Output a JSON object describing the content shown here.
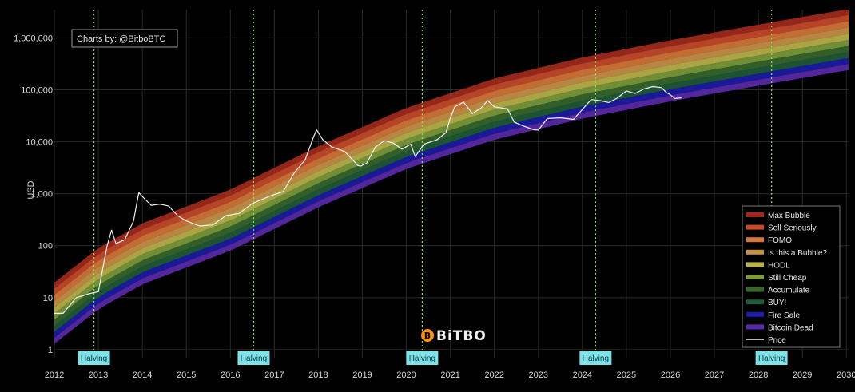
{
  "credit": "Charts by: @BitboBTC",
  "logo_text": "BiTBO",
  "chart_data": {
    "type": "line",
    "ylabel": "USD",
    "xlabel": "",
    "title": "",
    "y_scale": "log",
    "ylim": [
      0.7,
      3500000
    ],
    "xlim": [
      2012.0,
      2030.05
    ],
    "grid": true,
    "x_ticks": [
      "2012",
      "2013",
      "2014",
      "2015",
      "2016",
      "2017",
      "2018",
      "2019",
      "2020",
      "2021",
      "2022",
      "2023",
      "2024",
      "2025",
      "2026",
      "2027",
      "2028",
      "2029",
      "2030"
    ],
    "y_ticks": [
      "1",
      "10",
      "100",
      "1,000",
      "10,000",
      "100,000",
      "1,000,000"
    ],
    "halving_label": "Halving",
    "halvings": [
      2012.9,
      2016.53,
      2020.36,
      2024.3,
      2028.3
    ],
    "legend_position": "bottom-right",
    "bands": [
      {
        "name": "Max Bubble",
        "color": "#a22a1c"
      },
      {
        "name": "Sell Seriously",
        "color": "#c84a2a"
      },
      {
        "name": "FOMO",
        "color": "#d4763a"
      },
      {
        "name": "Is this a Bubble?",
        "color": "#c99048"
      },
      {
        "name": "HODL",
        "color": "#b9b24a"
      },
      {
        "name": "Still Cheap",
        "color": "#7b9a3c"
      },
      {
        "name": "Accumulate",
        "color": "#35662c"
      },
      {
        "name": "BUY!",
        "color": "#1f5a3a"
      },
      {
        "name": "Fire Sale",
        "color": "#1c1ca6"
      },
      {
        "name": "Bitcoin Dead",
        "color": "#5a2aa8"
      }
    ],
    "band_anchors": {
      "x": [
        2012.0,
        2013.0,
        2014.0,
        2016.0,
        2018.0,
        2020.0,
        2022.0,
        2024.0,
        2026.0,
        2028.0,
        2030.05
      ],
      "y": [
        1.3,
        6,
        18,
        80,
        550,
        3000,
        11000,
        28000,
        60000,
        120000,
        240000
      ]
    },
    "band_factors": [
      1.0,
      1.3,
      1.7,
      2.2,
      2.9,
      3.8,
      5.0,
      6.6,
      8.7,
      11.5,
      15.0
    ],
    "price_series": {
      "name": "Price",
      "color": "#f2f2f2",
      "x": [
        2012.0,
        2012.2,
        2012.5,
        2012.8,
        2013.0,
        2013.2,
        2013.3,
        2013.4,
        2013.6,
        2013.8,
        2013.92,
        2014.05,
        2014.2,
        2014.4,
        2014.6,
        2014.8,
        2015.0,
        2015.3,
        2015.6,
        2015.9,
        2016.2,
        2016.5,
        2016.9,
        2017.2,
        2017.45,
        2017.7,
        2017.9,
        2017.96,
        2018.1,
        2018.3,
        2018.6,
        2018.9,
        2018.96,
        2019.1,
        2019.3,
        2019.5,
        2019.7,
        2019.9,
        2020.1,
        2020.2,
        2020.4,
        2020.7,
        2020.9,
        2021.0,
        2021.1,
        2021.3,
        2021.5,
        2021.7,
        2021.85,
        2022.0,
        2022.3,
        2022.45,
        2022.6,
        2022.9,
        2023.0,
        2023.2,
        2023.5,
        2023.8,
        2024.0,
        2024.2,
        2024.4,
        2024.6,
        2024.8,
        2025.0,
        2025.2,
        2025.4,
        2025.6,
        2025.8,
        2025.9,
        2026.0,
        2026.1,
        2026.25
      ],
      "y": [
        5,
        5,
        10,
        12,
        13,
        100,
        200,
        110,
        130,
        300,
        1050,
        800,
        600,
        630,
        580,
        380,
        300,
        240,
        250,
        380,
        420,
        650,
        900,
        1100,
        2500,
        4500,
        13000,
        17000,
        11000,
        8000,
        6500,
        3500,
        3400,
        3900,
        8000,
        10500,
        9500,
        7200,
        9000,
        5200,
        9000,
        11000,
        15000,
        29000,
        47000,
        58000,
        35000,
        45000,
        62000,
        47000,
        43000,
        24000,
        21000,
        17000,
        16800,
        28000,
        29000,
        27000,
        42000,
        65000,
        62000,
        57000,
        70000,
        95000,
        85000,
        104000,
        115000,
        110000,
        90000,
        80000,
        68000,
        70000
      ]
    }
  }
}
